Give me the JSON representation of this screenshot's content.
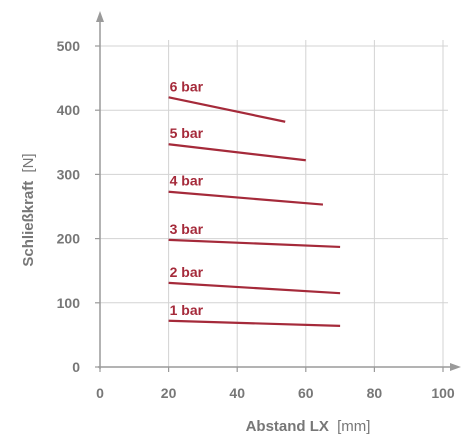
{
  "colors": {
    "series": "#a52a3a",
    "axis": "#9a9a9a",
    "grid": "#d3d3d3",
    "label": "#777777"
  },
  "chart_data": {
    "type": "line",
    "xlabel": "Abstand LX",
    "xunit": "[mm]",
    "ylabel": "Schließkraft",
    "yunit": "[N]",
    "xlim": [
      0,
      100
    ],
    "ylim": [
      0,
      500
    ],
    "xticks": [
      0,
      20,
      40,
      60,
      80,
      100
    ],
    "yticks": [
      0,
      100,
      200,
      300,
      400,
      500
    ],
    "grid": true,
    "series": [
      {
        "name": "6 bar",
        "x": [
          20,
          54
        ],
        "y": [
          420,
          382
        ]
      },
      {
        "name": "5 bar",
        "x": [
          20,
          60
        ],
        "y": [
          347,
          322
        ]
      },
      {
        "name": "4 bar",
        "x": [
          20,
          65
        ],
        "y": [
          273,
          253
        ]
      },
      {
        "name": "3 bar",
        "x": [
          20,
          70
        ],
        "y": [
          198,
          187
        ]
      },
      {
        "name": "2 bar",
        "x": [
          20,
          70
        ],
        "y": [
          131,
          115
        ]
      },
      {
        "name": "1 bar",
        "x": [
          20,
          70
        ],
        "y": [
          72,
          64
        ]
      }
    ]
  }
}
